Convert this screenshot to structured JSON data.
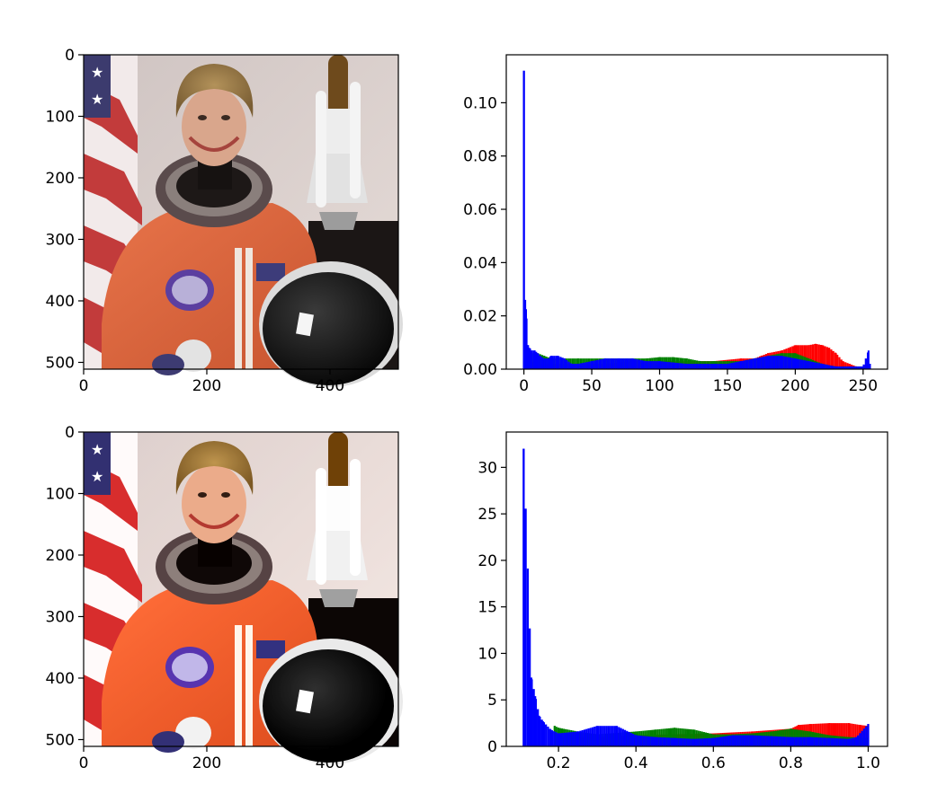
{
  "chart_data": [
    {
      "type": "image",
      "content": "astronaut photo (original)",
      "xticks": [
        "0",
        "200",
        "400"
      ],
      "yticks": [
        "0",
        "100",
        "200",
        "300",
        "400",
        "500"
      ],
      "xlim": [
        0,
        511
      ],
      "ylim": [
        511,
        0
      ]
    },
    {
      "type": "histogram",
      "xlim": [
        -13,
        268
      ],
      "ylim": [
        0,
        0.118
      ],
      "xticks": [
        "0",
        "50",
        "100",
        "150",
        "200",
        "250"
      ],
      "yticks": [
        "0.00",
        "0.02",
        "0.04",
        "0.06",
        "0.08",
        "0.10"
      ],
      "series": [
        {
          "color": "#ff0000",
          "x": [
            0,
            5,
            10,
            20,
            40,
            60,
            80,
            100,
            120,
            140,
            160,
            170,
            175,
            180,
            190,
            200,
            210,
            215,
            220,
            225,
            230,
            235,
            240,
            245,
            250,
            254,
            255
          ],
          "values": [
            0.003,
            0.003,
            0.002,
            0.002,
            0.002,
            0.002,
            0.003,
            0.003,
            0.003,
            0.003,
            0.004,
            0.004,
            0.005,
            0.006,
            0.007,
            0.009,
            0.009,
            0.0095,
            0.009,
            0.008,
            0.006,
            0.003,
            0.002,
            0.001,
            0.001,
            0.002,
            0.001
          ]
        },
        {
          "color": "#008000",
          "x": [
            0,
            2,
            5,
            10,
            15,
            20,
            40,
            60,
            80,
            90,
            100,
            110,
            120,
            130,
            140,
            150,
            160,
            170,
            180,
            190,
            200,
            210,
            220,
            230,
            240,
            250,
            254,
            255
          ],
          "values": [
            0.004,
            0.008,
            0.006,
            0.006,
            0.005,
            0.004,
            0.004,
            0.004,
            0.004,
            0.004,
            0.0045,
            0.0045,
            0.004,
            0.003,
            0.003,
            0.003,
            0.003,
            0.004,
            0.005,
            0.006,
            0.006,
            0.004,
            0.002,
            0.001,
            0.001,
            0.001,
            0.001,
            0.001
          ]
        },
        {
          "color": "#0000ff",
          "x": [
            0,
            1,
            2,
            3,
            4,
            6,
            8,
            10,
            12,
            15,
            18,
            20,
            25,
            30,
            35,
            40,
            50,
            60,
            70,
            80,
            90,
            100,
            110,
            120,
            130,
            140,
            150,
            160,
            170,
            180,
            190,
            200,
            210,
            220,
            230,
            240,
            250,
            254,
            255
          ],
          "values": [
            0.112,
            0.026,
            0.019,
            0.009,
            0.008,
            0.007,
            0.007,
            0.006,
            0.005,
            0.004,
            0.004,
            0.005,
            0.005,
            0.004,
            0.002,
            0.002,
            0.003,
            0.004,
            0.004,
            0.004,
            0.003,
            0.003,
            0.0025,
            0.002,
            0.002,
            0.002,
            0.002,
            0.003,
            0.004,
            0.005,
            0.005,
            0.004,
            0.003,
            0.002,
            0.001,
            0.001,
            0.001,
            0.007,
            0.002
          ]
        }
      ]
    },
    {
      "type": "image",
      "content": "astronaut photo (equalized)",
      "xticks": [
        "0",
        "200",
        "400"
      ],
      "yticks": [
        "0",
        "100",
        "200",
        "300",
        "400",
        "500"
      ],
      "xlim": [
        0,
        511
      ],
      "ylim": [
        511,
        0
      ]
    },
    {
      "type": "histogram",
      "xlim": [
        0.065,
        1.05
      ],
      "ylim": [
        0,
        33.8
      ],
      "xticks": [
        "0.2",
        "0.4",
        "0.6",
        "0.8",
        "1.0"
      ],
      "yticks": [
        "0",
        "5",
        "10",
        "15",
        "20",
        "25",
        "30"
      ],
      "series": [
        {
          "color": "#ff0000",
          "x": [
            0.2,
            0.3,
            0.4,
            0.5,
            0.6,
            0.7,
            0.8,
            0.82,
            0.85,
            0.9,
            0.95,
            0.98,
            1.0
          ],
          "values": [
            1.0,
            1.0,
            1.2,
            1.3,
            1.4,
            1.6,
            1.9,
            2.3,
            2.4,
            2.5,
            2.5,
            2.3,
            2.2
          ]
        },
        {
          "color": "#008000",
          "x": [
            0.19,
            0.2,
            0.25,
            0.3,
            0.4,
            0.45,
            0.5,
            0.55,
            0.6,
            0.65,
            0.7,
            0.75,
            0.8,
            0.85,
            0.9,
            0.95,
            1.0
          ],
          "values": [
            2.2,
            2.0,
            1.6,
            1.3,
            1.6,
            1.8,
            2.0,
            1.8,
            1.3,
            1.3,
            1.4,
            1.6,
            1.9,
            1.6,
            1.2,
            1.0,
            0.9
          ]
        },
        {
          "color": "#0000ff",
          "x": [
            0.11,
            0.13,
            0.14,
            0.15,
            0.16,
            0.18,
            0.2,
            0.25,
            0.3,
            0.35,
            0.4,
            0.45,
            0.5,
            0.55,
            0.6,
            0.65,
            0.7,
            0.75,
            0.8,
            0.85,
            0.9,
            0.95,
            0.97,
            1.0
          ],
          "values": [
            32.0,
            7.4,
            5.4,
            3.3,
            2.7,
            1.8,
            1.4,
            1.6,
            2.2,
            2.2,
            1.2,
            1.0,
            0.9,
            0.8,
            0.9,
            1.2,
            1.2,
            1.1,
            1.0,
            1.0,
            0.9,
            0.8,
            1.0,
            2.4
          ]
        }
      ]
    }
  ]
}
